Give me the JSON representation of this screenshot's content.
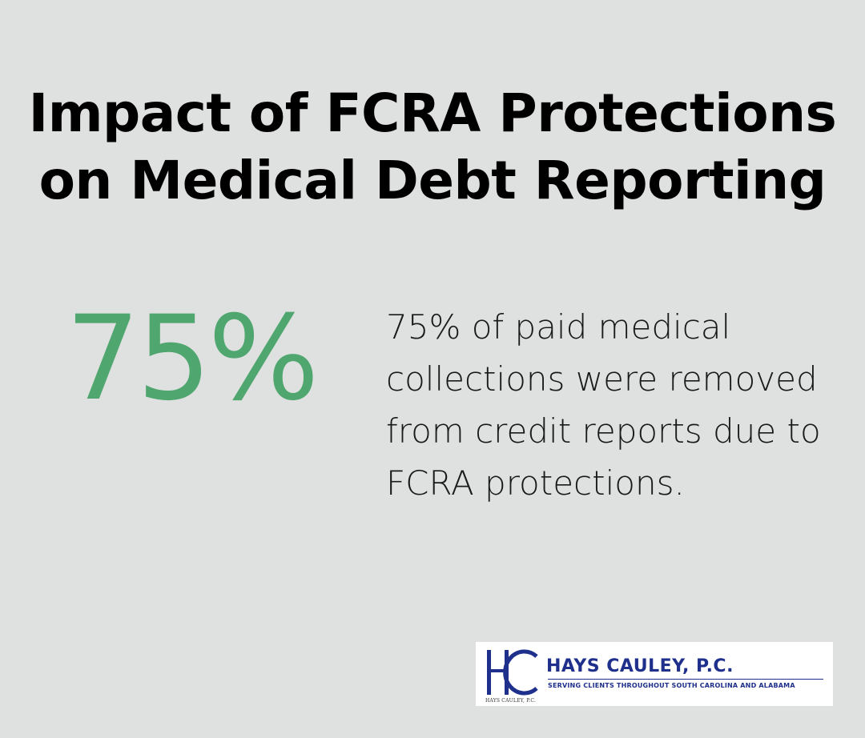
{
  "heading": {
    "line1": "Impact of FCRA Protections",
    "line2": "on Medical Debt Reporting"
  },
  "stat": {
    "value": "75%",
    "description": "75% of paid medical collections were removed from credit reports due to FCRA protections."
  },
  "logo": {
    "name": "HAYS CAULEY, P.C.",
    "tagline": "SERVING CLIENTS THROUGHOUT SOUTH CAROLINA AND ALABAMA",
    "small_text": "HAYS CAULEY, P.C.",
    "mark_letters": "HC",
    "brand_color": "#1e2f8c"
  },
  "colors": {
    "background": "#dfe1e0",
    "accent_green": "#50a66f",
    "text": "#000000"
  }
}
